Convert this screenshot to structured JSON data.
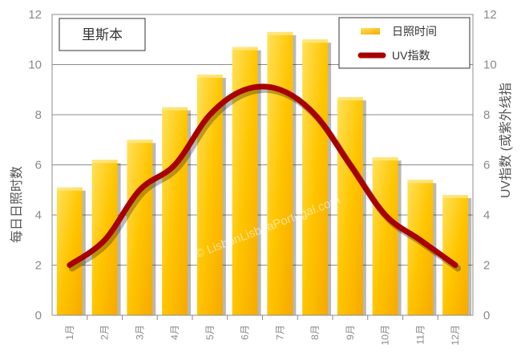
{
  "city": "里斯本",
  "watermark": "© LisbonLisboaPortugal.com",
  "colors": {
    "bar_light": "#ffe060",
    "bar_mid": "#ffc400",
    "bar_dark": "#f5a800",
    "uv_line": "#a80000",
    "grid": "#8c8c8c",
    "axis_text": "#8a8a8a"
  },
  "chart_data": {
    "type": "bar",
    "categories": [
      "1月",
      "2月",
      "3月",
      "4月",
      "5月",
      "6月",
      "7月",
      "8月",
      "9月",
      "10月",
      "11月",
      "12月"
    ],
    "series": [
      {
        "name": "日照时间",
        "type": "bar",
        "axis": "left",
        "values": [
          5.1,
          6.2,
          7.0,
          8.3,
          9.6,
          10.7,
          11.3,
          11.0,
          8.7,
          6.3,
          5.4,
          4.8
        ]
      },
      {
        "name": "UV指数",
        "type": "line",
        "axis": "right",
        "values": [
          2,
          3,
          5,
          6,
          8,
          9,
          9,
          8,
          6,
          4,
          3,
          2
        ]
      }
    ],
    "ylabel": "每日日照时数",
    "y2label": "UV指数 (或紫外线指",
    "ylim": [
      0,
      12
    ],
    "y2lim": [
      0,
      12
    ],
    "yticks": [
      "0",
      "2",
      "4",
      "6",
      "8",
      "10",
      "12"
    ],
    "y2ticks": [
      "0",
      "2",
      "4",
      "6",
      "8",
      "10",
      "12"
    ],
    "grid": true,
    "legend_position": "top-right"
  }
}
